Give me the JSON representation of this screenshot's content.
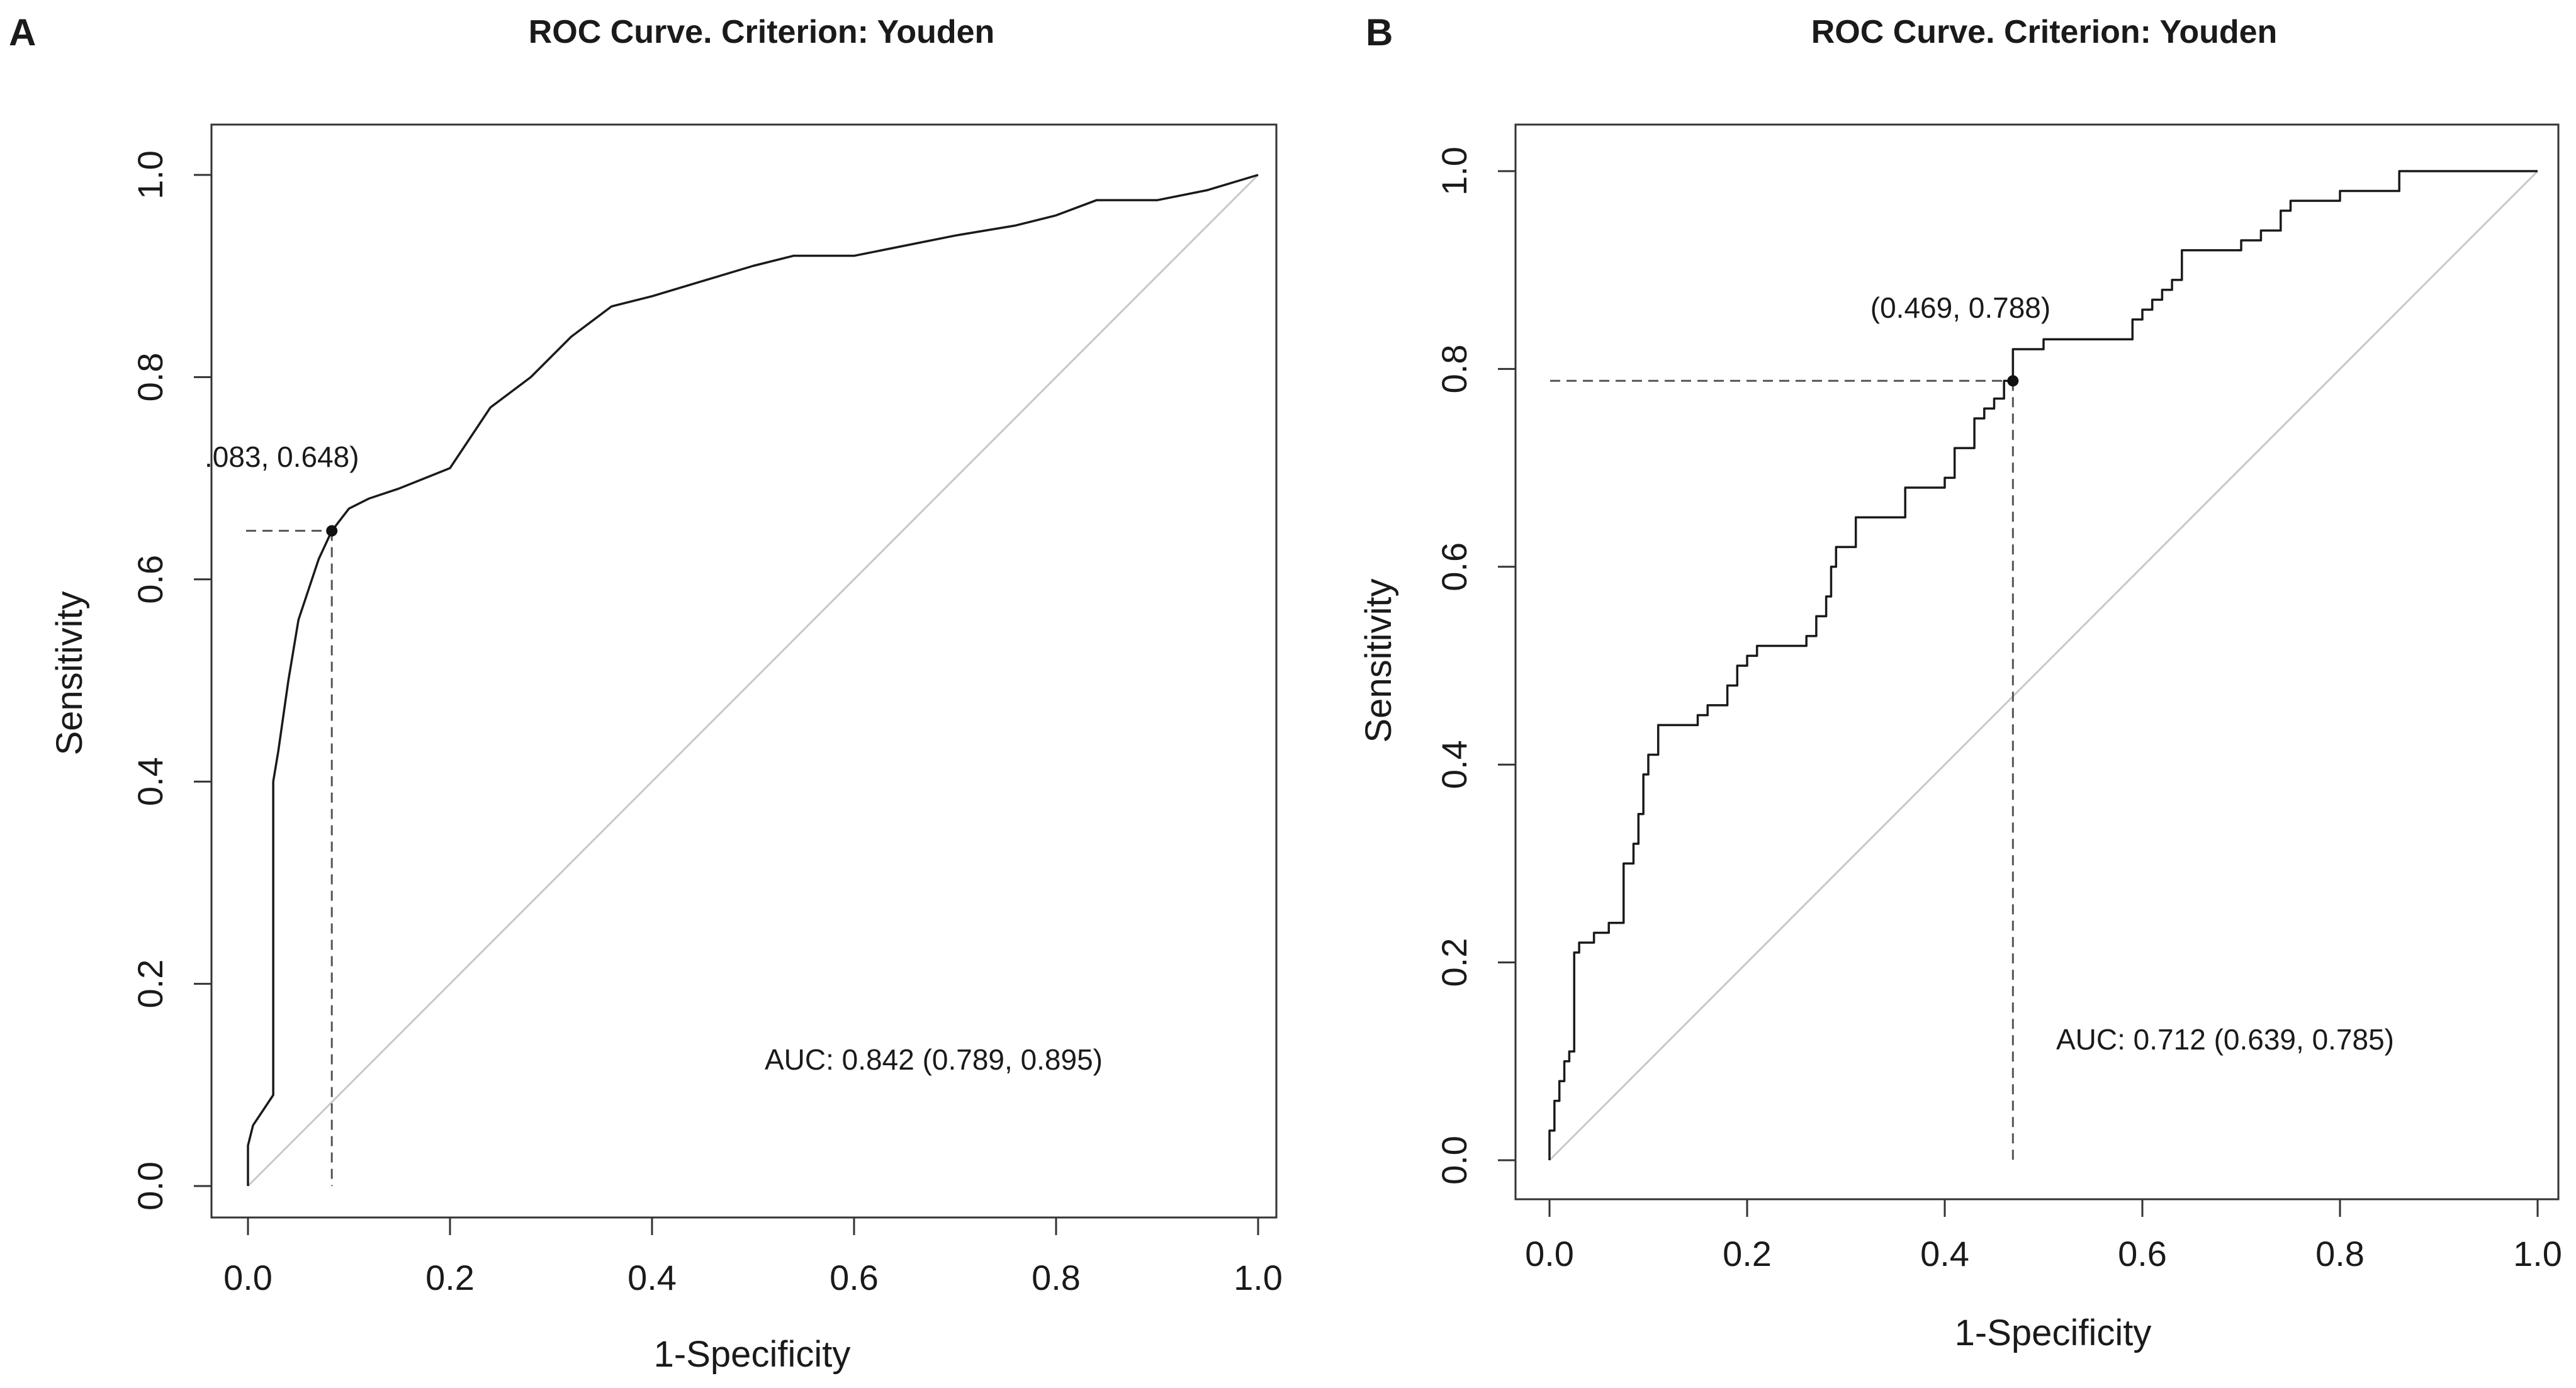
{
  "chart_data": [
    {
      "type": "line",
      "panel": "A",
      "title": "ROC Curve. Criterion: Youden",
      "xlabel": "1-Specificity",
      "ylabel": "Sensitivity",
      "xlim": [
        0,
        1
      ],
      "ylim": [
        0,
        1
      ],
      "x_ticks": [
        0,
        0.2,
        0.4,
        0.6,
        0.8,
        1
      ],
      "x_tick_labels": [
        "0.0",
        "0.2",
        "0.4",
        "0.6",
        "0.8",
        "1.0"
      ],
      "y_ticks": [
        0,
        0.2,
        0.4,
        0.6,
        0.8,
        1
      ],
      "y_tick_labels": [
        "0.0",
        "0.2",
        "0.4",
        "0.6",
        "0.8",
        "1.0"
      ],
      "curve": {
        "x": [
          0,
          0,
          0.005,
          0.015,
          0.025,
          0.025,
          0.03,
          0.04,
          0.05,
          0.06,
          0.07,
          0.083,
          0.1,
          0.12,
          0.15,
          0.2,
          0.24,
          0.28,
          0.32,
          0.36,
          0.4,
          0.45,
          0.5,
          0.54,
          0.6,
          0.65,
          0.7,
          0.76,
          0.8,
          0.84,
          0.9,
          0.95,
          1
        ],
        "y": [
          0,
          0.04,
          0.06,
          0.075,
          0.09,
          0.4,
          0.43,
          0.5,
          0.56,
          0.59,
          0.62,
          0.648,
          0.67,
          0.68,
          0.69,
          0.71,
          0.77,
          0.8,
          0.84,
          0.87,
          0.88,
          0.895,
          0.91,
          0.92,
          0.92,
          0.93,
          0.94,
          0.95,
          0.96,
          0.975,
          0.975,
          0.985,
          1
        ]
      },
      "step": false,
      "reference_line": {
        "x": [
          0,
          1
        ],
        "y": [
          0,
          1
        ]
      },
      "cutoff_point": {
        "x": 0.083,
        "y": 0.648
      },
      "cutoff_label": ".083, 0.648)",
      "auc_label": "AUC: 0.842 (0.789, 0.895)"
    },
    {
      "type": "line",
      "panel": "B",
      "title": "ROC Curve. Criterion: Youden",
      "xlabel": "1-Specificity",
      "ylabel": "Sensitivity",
      "xlim": [
        0,
        1
      ],
      "ylim": [
        0,
        1
      ],
      "x_ticks": [
        0,
        0.2,
        0.4,
        0.6,
        0.8,
        1
      ],
      "x_tick_labels": [
        "0.0",
        "0.2",
        "0.4",
        "0.6",
        "0.8",
        "1.0"
      ],
      "y_ticks": [
        0,
        0.2,
        0.4,
        0.6,
        0.8,
        1
      ],
      "y_tick_labels": [
        "0.0",
        "0.2",
        "0.4",
        "0.6",
        "0.8",
        "1.0"
      ],
      "curve": {
        "x": [
          0,
          0.005,
          0.01,
          0.015,
          0.02,
          0.025,
          0.03,
          0.045,
          0.06,
          0.075,
          0.085,
          0.09,
          0.095,
          0.1,
          0.11,
          0.15,
          0.16,
          0.18,
          0.19,
          0.2,
          0.21,
          0.26,
          0.27,
          0.28,
          0.285,
          0.29,
          0.3,
          0.31,
          0.36,
          0.4,
          0.41,
          0.43,
          0.44,
          0.45,
          0.455,
          0.46,
          0.469,
          0.5,
          0.52,
          0.59,
          0.6,
          0.61,
          0.62,
          0.63,
          0.64,
          0.7,
          0.72,
          0.74,
          0.75,
          0.8,
          0.86,
          0.9,
          1
        ],
        "y": [
          0,
          0.03,
          0.06,
          0.08,
          0.1,
          0.11,
          0.21,
          0.22,
          0.23,
          0.24,
          0.3,
          0.32,
          0.35,
          0.39,
          0.41,
          0.44,
          0.45,
          0.46,
          0.48,
          0.5,
          0.51,
          0.52,
          0.53,
          0.55,
          0.57,
          0.6,
          0.62,
          0.62,
          0.65,
          0.68,
          0.69,
          0.72,
          0.75,
          0.76,
          0.77,
          0.77,
          0.788,
          0.82,
          0.83,
          0.83,
          0.85,
          0.86,
          0.87,
          0.88,
          0.89,
          0.92,
          0.93,
          0.94,
          0.96,
          0.97,
          0.98,
          1,
          1
        ]
      },
      "step": true,
      "reference_line": {
        "x": [
          0,
          1
        ],
        "y": [
          0,
          1
        ]
      },
      "cutoff_point": {
        "x": 0.469,
        "y": 0.788
      },
      "cutoff_label": "(0.469, 0.788)",
      "auc_label": "AUC: 0.712 (0.639, 0.785)"
    }
  ]
}
